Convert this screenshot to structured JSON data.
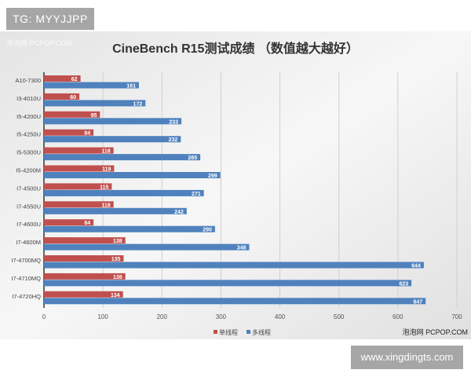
{
  "tag_watermark": "TG: MYYJJPP",
  "site_watermark": "www.xingdingts.com",
  "chart_data": {
    "type": "bar",
    "orientation": "horizontal",
    "title": "CineBench R15测试成绩 （数值越大越好）",
    "categories": [
      "A10-7300",
      "I3-4010U",
      "I5-4200U",
      "I5-4250U",
      "I5-5300U",
      "I5-4200M",
      "I7-4500U",
      "I7-4550U",
      "I7-4600U",
      "I7-4600M",
      "I7-4700MQ",
      "I7-4710MQ",
      "I7-4720HQ"
    ],
    "series": [
      {
        "name": "单线程",
        "color": "#c0504d",
        "values": [
          62,
          60,
          95,
          84,
          118,
          119,
          115,
          118,
          84,
          138,
          135,
          138,
          134
        ]
      },
      {
        "name": "多线程",
        "color": "#4f81bd",
        "values": [
          161,
          172,
          233,
          232,
          265,
          299,
          271,
          242,
          290,
          348,
          644,
          623,
          647
        ]
      }
    ],
    "xlim": [
      0,
      700
    ],
    "xticks": [
      0,
      100,
      200,
      300,
      400,
      500,
      600,
      700
    ],
    "grid": true,
    "legend": "bottom",
    "watermark_top": "泡泡网 PCPOP.COM",
    "watermark_bottom": "泡泡网 PCPOP.COM"
  }
}
